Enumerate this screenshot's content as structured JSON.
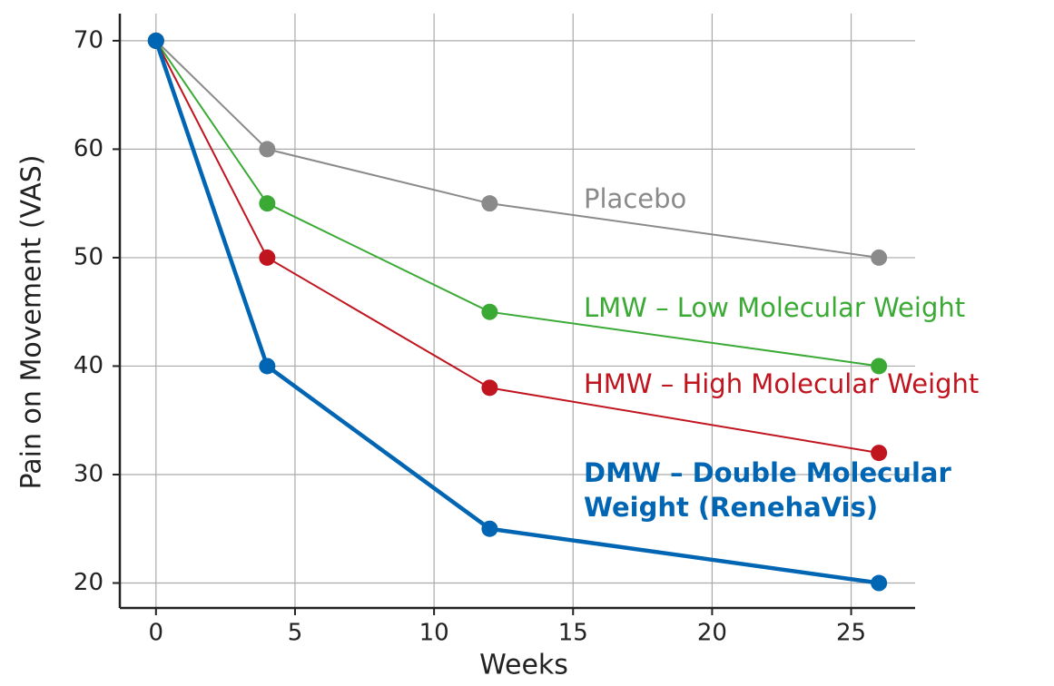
{
  "chart_data": {
    "type": "line",
    "x_label": "Weeks",
    "y_label": "Pain on Movement (VAS)",
    "x": [
      0,
      4,
      12,
      26
    ],
    "series": [
      {
        "name": "Placebo",
        "color": "#8a8a8a",
        "values": [
          70,
          60,
          55,
          50
        ]
      },
      {
        "name": "LMW – Low Molecular Weight",
        "color": "#3aaa35",
        "values": [
          70,
          55,
          45,
          40
        ]
      },
      {
        "name": "HMW – High Molecular Weight",
        "color": "#c0141e",
        "values": [
          70,
          50,
          38,
          32
        ]
      },
      {
        "name": "DMW – Double Molecular Weight (RenehaVis)",
        "color": "#0065b3",
        "values": [
          70,
          40,
          25,
          20
        ]
      }
    ],
    "xlim": [
      -1.3,
      27.3
    ],
    "ylim": [
      17.7,
      72.5
    ],
    "xticks": [
      0,
      5,
      10,
      15,
      20,
      25
    ],
    "yticks": [
      20,
      30,
      40,
      50,
      60,
      70
    ],
    "grid": true
  }
}
